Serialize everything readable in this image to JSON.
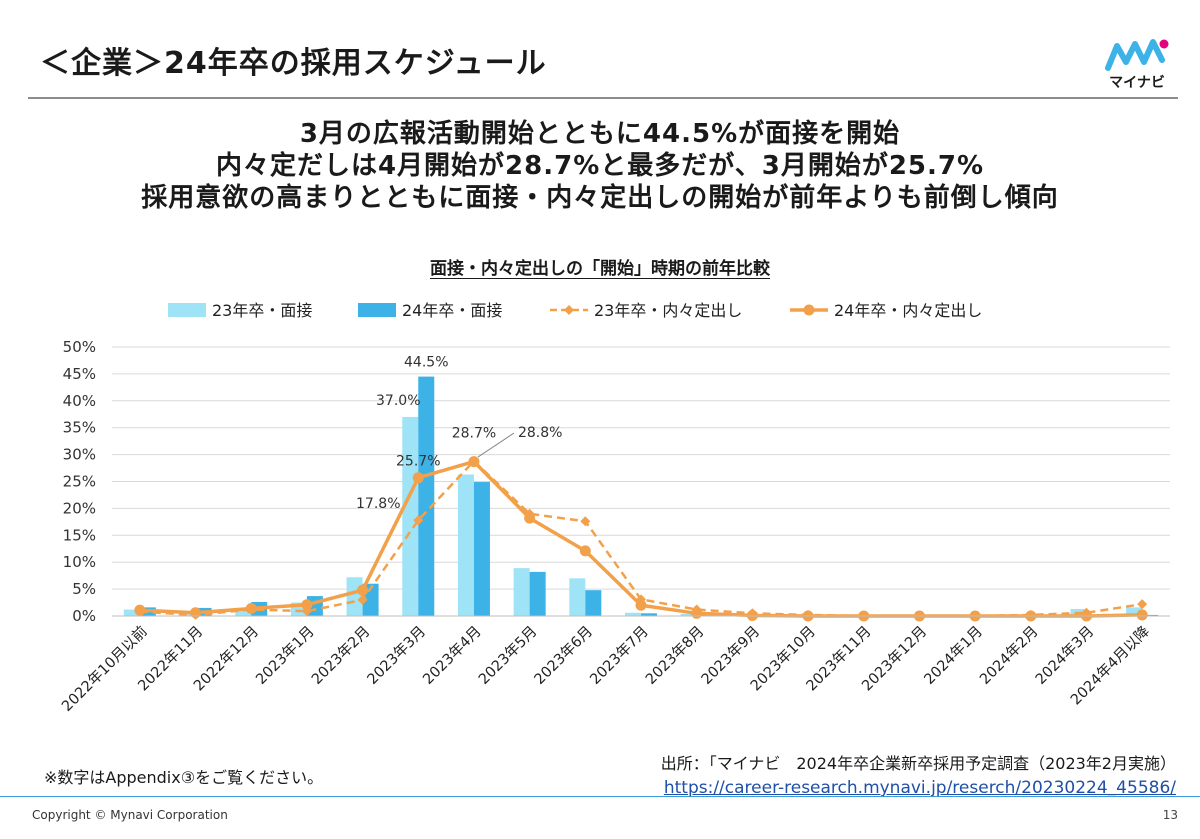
{
  "slide": {
    "title": "＜企業＞24年卒の採用スケジュール",
    "logo_text": "マイナビ",
    "headline": [
      "3月の広報活動開始とともに44.5%が面接を開始",
      "内々定だしは4月開始が28.7%と最多だが、3月開始が25.7%",
      "採用意欲の高まりとともに面接・内々定出しの開始が前年よりも前倒し傾向"
    ],
    "note": "※数字はAppendix③をご覧ください。",
    "source": "出所：「マイナビ　2024年卒企業新卒採用予定調査（2023年2月実施）",
    "source_url": "https://career-research.mynavi.jp/reserch/20230224_45586/",
    "copyright": "Copyright © Mynavi Corporation",
    "page_number": "13"
  },
  "colors": {
    "bar23": "#9fe3f6",
    "bar24": "#3cb2e6",
    "line": "#f2a04a",
    "grid": "#d9d9d9",
    "footer_rule": "#3a9bd8"
  },
  "chart_data": {
    "type": "bar",
    "title": "面接・内々定出しの「開始」時期の前年比較",
    "categories": [
      "2022年10月以前",
      "2022年11月",
      "2022年12月",
      "2023年1月",
      "2023年2月",
      "2023年3月",
      "2023年4月",
      "2023年5月",
      "2023年6月",
      "2023年7月",
      "2023年8月",
      "2023年9月",
      "2023年10月",
      "2023年11月",
      "2023年12月",
      "2024年1月",
      "2024年2月",
      "2024年3月",
      "2024年4月以降"
    ],
    "ylim": [
      0,
      50
    ],
    "yticks": [
      "0%",
      "5%",
      "10%",
      "15%",
      "20%",
      "25%",
      "30%",
      "35%",
      "40%",
      "45%",
      "50%"
    ],
    "grid": true,
    "legend_position": "top",
    "series": [
      {
        "name": "23年卒・面接",
        "kind": "bar",
        "values": [
          1.2,
          0.8,
          1.5,
          2.5,
          7.2,
          37.0,
          26.3,
          8.9,
          7.0,
          0.6,
          0.4,
          0.1,
          0.0,
          0.0,
          0.0,
          0.0,
          0.1,
          1.3,
          1.6
        ]
      },
      {
        "name": "24年卒・面接",
        "kind": "bar",
        "values": [
          1.6,
          1.5,
          2.6,
          3.7,
          6.0,
          44.5,
          24.9,
          8.2,
          4.8,
          0.5,
          0.2,
          0.0,
          0.0,
          0.0,
          0.0,
          0.0,
          0.0,
          0.1,
          0.2
        ]
      },
      {
        "name": "23年卒・内々定出し",
        "kind": "line",
        "dashed": true,
        "values": [
          0.8,
          0.2,
          1.2,
          0.9,
          3.0,
          17.8,
          28.8,
          19.0,
          17.6,
          3.1,
          1.2,
          0.5,
          0.2,
          0.0,
          0.0,
          0.0,
          0.2,
          0.6,
          2.2
        ]
      },
      {
        "name": "24年卒・内々定出し",
        "kind": "line",
        "dashed": false,
        "values": [
          1.1,
          0.6,
          1.4,
          2.1,
          4.8,
          25.7,
          28.7,
          18.2,
          12.1,
          2.0,
          0.5,
          0.1,
          0.0,
          0.0,
          0.0,
          0.0,
          0.0,
          0.0,
          0.2
        ]
      }
    ],
    "data_labels": [
      {
        "text": "44.5%",
        "series": 1,
        "index": 5
      },
      {
        "text": "37.0%",
        "series": 0,
        "index": 5
      },
      {
        "text": "25.7%",
        "series": 3,
        "index": 5
      },
      {
        "text": "17.8%",
        "series": 2,
        "index": 5
      },
      {
        "text": "28.7%",
        "series": 3,
        "index": 6
      },
      {
        "text": "28.8%",
        "series": 2,
        "index": 6
      }
    ]
  }
}
